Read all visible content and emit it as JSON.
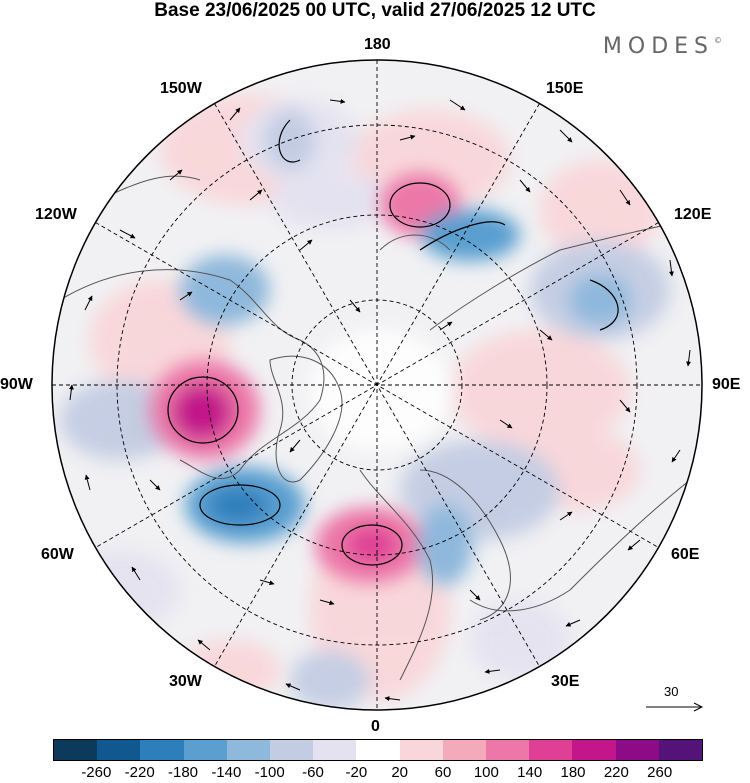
{
  "title": "Base 23/06/2025 00 UTC, valid 27/06/2025 12 UTC",
  "brand": "MODES",
  "brand_mark": "©",
  "map": {
    "projection": "north-polar-stereographic",
    "longitude_labels": {
      "top": "180",
      "bottom": "0",
      "left": "90W",
      "right": "90E",
      "upper_left": "150W",
      "upper_right": "150E",
      "mid_upper_left": "120W",
      "mid_upper_right": "120E",
      "mid_lower_left": "60W",
      "mid_lower_right": "60E",
      "lower_left": "30W",
      "lower_right": "30E"
    }
  },
  "vector_reference": {
    "value": "30"
  },
  "colorbar": {
    "ticks": [
      "-260",
      "-220",
      "-180",
      "-140",
      "-100",
      "-60",
      "-20",
      "20",
      "60",
      "100",
      "140",
      "180",
      "220",
      "260"
    ],
    "colors": [
      "#0b3a5c",
      "#10588f",
      "#2d7fbb",
      "#5a9fd0",
      "#8eb8dc",
      "#c2cce3",
      "#e4e2f0",
      "#ffffff",
      "#f9d6d9",
      "#f3aabb",
      "#ec77a8",
      "#df3f95",
      "#c2168a",
      "#8d0b86",
      "#55137a"
    ]
  }
}
